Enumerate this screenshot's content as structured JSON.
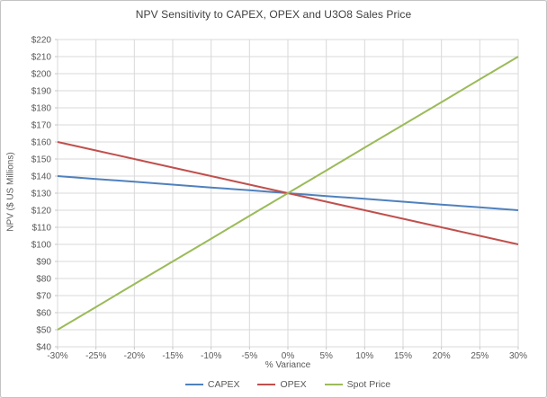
{
  "window": {
    "background": "#ffffff",
    "border_color": "#c3c3c3"
  },
  "chart_data": {
    "type": "line",
    "title": "NPV Sensitivity to CAPEX, OPEX and U3O8 Sales Price",
    "xlabel": "% Variance",
    "ylabel": "NPV ($ US Millions)",
    "x": [
      -30,
      -25,
      -20,
      -15,
      -10,
      -5,
      0,
      5,
      10,
      15,
      20,
      25,
      30
    ],
    "x_tick_labels": [
      "-30%",
      "-25%",
      "-20%",
      "-15%",
      "-10%",
      "-5%",
      "0%",
      "5%",
      "10%",
      "15%",
      "20%",
      "25%",
      "30%"
    ],
    "xlim": [
      -30,
      30
    ],
    "ylim": [
      40,
      220
    ],
    "y_tick_values": [
      220,
      210,
      200,
      190,
      180,
      170,
      160,
      150,
      140,
      130,
      120,
      110,
      100,
      90,
      80,
      70,
      60,
      50,
      40
    ],
    "y_tick_labels": [
      "$220",
      "$210",
      "$200",
      "$190",
      "$180",
      "$170",
      "$160",
      "$150",
      "$140",
      "$130",
      "$120",
      "$110",
      "$100",
      "$90",
      "$80",
      "$70",
      "$60",
      "$50",
      "$40"
    ],
    "grid": true,
    "gridline_color": "#d9d9d9",
    "tick_color": "#c6c6c6",
    "axis_text_color": "#595959",
    "title_color": "#404040",
    "legend_position": "bottom",
    "series": [
      {
        "name": "CAPEX",
        "color": "#4F81BD",
        "values": [
          140,
          138.3,
          136.7,
          135,
          133.3,
          131.7,
          130,
          128.3,
          126.7,
          125,
          123.3,
          121.7,
          120
        ]
      },
      {
        "name": "OPEX",
        "color": "#C0504D",
        "values": [
          160,
          155,
          150,
          145,
          140,
          135,
          130,
          125,
          120,
          115,
          110,
          105,
          100
        ]
      },
      {
        "name": "Spot Price",
        "color": "#9BBB59",
        "values": [
          50,
          63.3,
          76.7,
          90,
          103.3,
          116.7,
          130,
          143.3,
          156.7,
          170,
          183.3,
          196.7,
          210
        ]
      }
    ]
  }
}
